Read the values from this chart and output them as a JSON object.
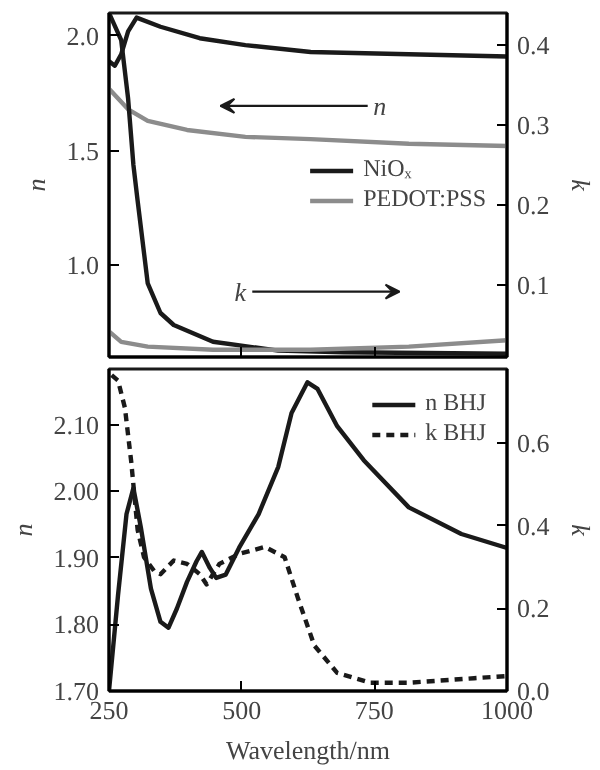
{
  "chart_data": [
    {
      "type": "line",
      "ylabel": "n",
      "y2label": "k",
      "xlim": [
        250,
        1000
      ],
      "xticks": [
        250,
        500,
        750,
        1000
      ],
      "ylim": [
        0.6,
        2.1
      ],
      "yticks": [
        {
          "value": 1.0,
          "label": "1.0"
        },
        {
          "value": 1.5,
          "label": "1.5"
        },
        {
          "value": 2.0,
          "label": "2.0"
        }
      ],
      "y2lim": [
        0.01,
        0.44
      ],
      "y2ticks": [
        0.1,
        0.2,
        0.3,
        0.4
      ],
      "tick_labels": "y",
      "grid": false,
      "legend": "right",
      "line_style": "solid",
      "marker": "none",
      "annotations": [
        "n",
        "k"
      ],
      "series": [
        {
          "name": "NiOₓ",
          "color": "#1a1a1a",
          "axis": "y",
          "x": [
            250,
            261,
            273,
            286,
            302,
            347,
            421,
            507,
            630,
            815,
            1000
          ],
          "values": [
            1.89,
            1.87,
            1.92,
            2.02,
            2.08,
            2.04,
            1.99,
            1.96,
            1.93,
            1.92,
            1.91
          ]
        },
        {
          "name": "PEDOT:PSS",
          "color": "#8c8c8c",
          "axis": "y",
          "x": [
            250,
            286,
            323,
            397,
            507,
            630,
            815,
            1000
          ],
          "values": [
            1.77,
            1.68,
            1.63,
            1.59,
            1.56,
            1.55,
            1.53,
            1.52
          ]
        },
        {
          "color": "#1a1a1a",
          "axis": "y2",
          "x": [
            250,
            273,
            286,
            296,
            304,
            323,
            347,
            372,
            446,
            569,
            692,
            1000
          ],
          "values": [
            0.44,
            0.406,
            0.333,
            0.25,
            0.205,
            0.102,
            0.065,
            0.05,
            0.029,
            0.018,
            0.016,
            0.014
          ]
        },
        {
          "color": "#8c8c8c",
          "axis": "y2",
          "x": [
            250,
            273,
            323,
            446,
            630,
            815,
            1000
          ],
          "values": [
            0.042,
            0.029,
            0.023,
            0.019,
            0.019,
            0.023,
            0.031
          ]
        }
      ]
    },
    {
      "type": "line",
      "xlabel": "Wavelength/nm",
      "ylabel": "n",
      "y2label": "k",
      "xlim": [
        250,
        1000
      ],
      "xticks": [
        250,
        500,
        750,
        1000
      ],
      "ylim": [
        1.7,
        2.184
      ],
      "yticks": [
        {
          "value": 1.7,
          "label": "1.70"
        },
        {
          "value": 1.8,
          "label": "1.80"
        },
        {
          "value": 1.9,
          "label": "1.90"
        },
        {
          "value": 2.0,
          "label": "2.00"
        },
        {
          "value": 2.1,
          "label": "2.10"
        }
      ],
      "y2lim": [
        0,
        0.78
      ],
      "y2ticks": [
        {
          "value": 0,
          "label": "0.0"
        },
        {
          "value": 0.2,
          "label": "0.2"
        },
        {
          "value": 0.4,
          "label": "0.4"
        },
        {
          "value": 0.6,
          "label": "0.6"
        }
      ],
      "grid": false,
      "legend": "top right",
      "marker": "none",
      "series": [
        {
          "name": "n BHJ",
          "color": "#1a1a1a",
          "axis": "y",
          "line_style": "solid",
          "x": [
            250,
            267,
            283,
            296,
            310,
            329,
            347,
            362,
            378,
            397,
            415,
            425,
            440,
            452,
            470,
            495,
            532,
            569,
            594,
            624,
            643,
            680,
            730,
            815,
            914,
            1000
          ],
          "values": [
            1.7,
            1.844,
            1.966,
            2.005,
            1.946,
            1.854,
            1.804,
            1.795,
            1.824,
            1.864,
            1.895,
            1.909,
            1.885,
            1.87,
            1.875,
            1.915,
            1.966,
            2.037,
            2.118,
            2.164,
            2.154,
            2.098,
            2.047,
            1.976,
            1.936,
            1.915
          ]
        },
        {
          "name": "k BHJ",
          "color": "#1a1a1a",
          "axis": "y2",
          "line_style": "dashed",
          "x": [
            255,
            267,
            280,
            292,
            304,
            316,
            335,
            347,
            372,
            397,
            421,
            434,
            458,
            495,
            544,
            581,
            606,
            637,
            680,
            742,
            815,
            938,
            1000
          ],
          "values": [
            0.765,
            0.752,
            0.686,
            0.554,
            0.39,
            0.324,
            0.291,
            0.283,
            0.316,
            0.308,
            0.283,
            0.258,
            0.308,
            0.332,
            0.349,
            0.324,
            0.225,
            0.11,
            0.044,
            0.02,
            0.02,
            0.031,
            0.036
          ]
        }
      ]
    }
  ]
}
